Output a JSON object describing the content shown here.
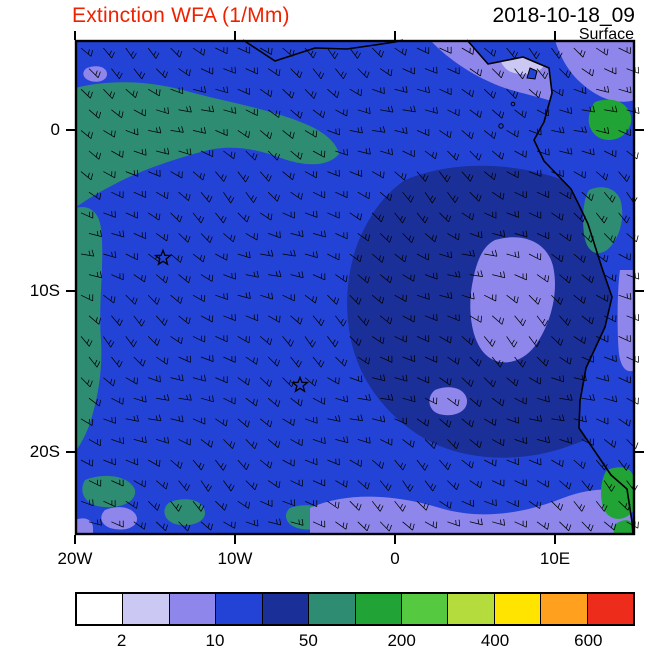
{
  "header": {
    "title": "Extinction WFA (1/Mm)",
    "datetime": "2018-10-18_09",
    "level": "Surface"
  },
  "colors": {
    "title": "#ee2200",
    "field_blue": "#2343d6",
    "elevated_navy": "#1b2f98",
    "low_periwinkle": "#8f86ec",
    "pale_lavender": "#cbc9f4",
    "teal": "#2e8c72",
    "green": "#21a336",
    "coast": "#000000",
    "barb": "#000000"
  },
  "axes": {
    "x_ticks": [
      "20W",
      "10W",
      "0",
      "10E"
    ],
    "y_ticks": [
      "0",
      "10S",
      "20S"
    ]
  },
  "colorbar": {
    "colors": [
      "#ffffff",
      "#cbc9f4",
      "#8f86ec",
      "#2343d6",
      "#1b2f98",
      "#2e8c72",
      "#21a336",
      "#55c93f",
      "#b4dc3c",
      "#ffe400",
      "#ffa01e",
      "#ee2c1c"
    ],
    "tick_labels": [
      "2",
      "10",
      "50",
      "200",
      "400",
      "600"
    ],
    "tick_positions": [
      1,
      3,
      5,
      7,
      9,
      11
    ]
  },
  "chart_data": {
    "type": "heatmap",
    "title": "Extinction WFA (1/Mm)",
    "subtitle_right": "2018-10-18_09",
    "level": "Surface",
    "x_axis": {
      "tick_labels": [
        "20W",
        "10W",
        "0",
        "10E"
      ],
      "approx_lon_range": [
        -20,
        15
      ]
    },
    "y_axis": {
      "tick_labels": [
        "0",
        "10S",
        "20S"
      ],
      "approx_lat_range": [
        -25,
        6
      ]
    },
    "colorbar": {
      "units": "1/Mm",
      "labeled_levels": [
        2,
        10,
        50,
        200,
        400,
        600
      ],
      "n_colors": 12,
      "colors": [
        "#ffffff",
        "#cbc9f4",
        "#8f86ec",
        "#2343d6",
        "#1b2f98",
        "#2e8c72",
        "#21a336",
        "#55c93f",
        "#b4dc3c",
        "#ffe400",
        "#ffa01e",
        "#ee2c1c"
      ]
    },
    "field_description": [
      {
        "region": "most of the South Atlantic domain",
        "value_band": "10-50",
        "color": "#2343d6"
      },
      {
        "region": "broad region offshore Angola/Namibia (right-center)",
        "value_band": "upper part of 10-50 band",
        "color": "#1b2f98"
      },
      {
        "region": "arc along the northern edge near the equator and down the western edge",
        "value_band": "50-200",
        "color": "#2e8c72"
      },
      {
        "region": "patches in the northeast corner, along the bottom edge and near the African coast",
        "value_band": "2-10",
        "color": "#8f86ec"
      },
      {
        "region": "land patches in the northeast and southeast corners",
        "value_band": "50-200",
        "color": "#21a336"
      }
    ],
    "overlays": {
      "wind_barbs": "dense field of wind barbs across the whole domain (southeasterly trades)",
      "coastline": "west coast of Africa from the Gulf of Guinea to Namibia",
      "star_markers_lonlat": [
        [
          -14.4,
          -7.9
        ],
        [
          -5.7,
          -15.9
        ]
      ]
    }
  }
}
